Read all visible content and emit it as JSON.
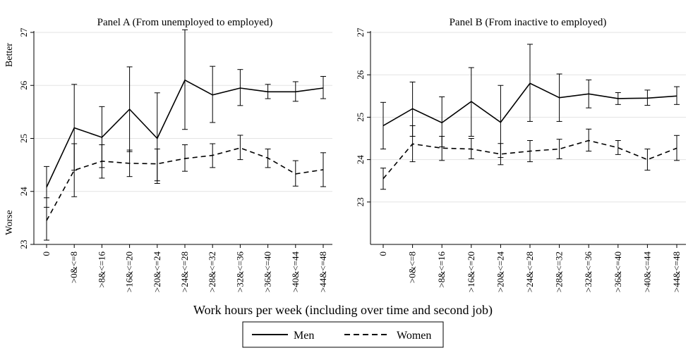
{
  "figure": {
    "x_axis_title": "Work hours per week (including over time and second job)",
    "y_side_labels": {
      "top": "Better",
      "bottom": "Worse"
    },
    "legend": {
      "items": [
        "Men",
        "Women"
      ]
    },
    "colors": {
      "lines": "#000000",
      "background": "#ffffff"
    }
  },
  "chart_data": [
    {
      "type": "line",
      "title": "Panel A (From unemployed to employed)",
      "categories": [
        "0",
        ">0&<=8",
        ">8&<=16",
        ">16&<=20",
        ">20&<=24",
        ">24&<=28",
        ">28&<=32",
        ">32&<=36",
        ">36&<=40",
        ">40&<=44",
        ">44&<=48"
      ],
      "ylim": [
        23,
        27
      ],
      "yticks": [
        23,
        24,
        25,
        26,
        27
      ],
      "grid": true,
      "series": [
        {
          "name": "Men",
          "style": "solid",
          "values": [
            24.08,
            25.2,
            25.02,
            25.55,
            25.0,
            26.1,
            25.82,
            25.95,
            25.88,
            25.88,
            25.95
          ],
          "lower": [
            23.7,
            24.4,
            24.45,
            24.75,
            24.15,
            25.17,
            25.3,
            25.62,
            25.75,
            25.7,
            25.75
          ],
          "upper": [
            24.47,
            26.02,
            25.6,
            26.35,
            25.86,
            27.05,
            26.36,
            26.3,
            26.02,
            26.07,
            26.17
          ]
        },
        {
          "name": "Women",
          "style": "dashed",
          "values": [
            23.45,
            24.4,
            24.57,
            24.53,
            24.52,
            24.62,
            24.68,
            24.82,
            24.63,
            24.33,
            24.41
          ],
          "lower": [
            23.08,
            23.9,
            24.25,
            24.28,
            24.2,
            24.38,
            24.45,
            24.6,
            24.45,
            24.1,
            24.09
          ],
          "upper": [
            23.88,
            24.9,
            24.88,
            24.78,
            24.8,
            24.88,
            24.9,
            25.06,
            24.8,
            24.58,
            24.73
          ]
        }
      ]
    },
    {
      "type": "line",
      "title": "Panel B (From inactive to employed)",
      "categories": [
        "0",
        ">0&<=8",
        ">8&<=16",
        ">16&<=20",
        ">20&<=24",
        ">24&<=28",
        ">28&<=32",
        ">32&<=36",
        ">36&<=40",
        ">40&<=44",
        ">44&<=48"
      ],
      "ylim": [
        22,
        27
      ],
      "yticks": [
        23,
        24,
        25,
        26,
        27
      ],
      "grid": true,
      "series": [
        {
          "name": "Men",
          "style": "solid",
          "values": [
            24.8,
            25.2,
            24.87,
            25.37,
            24.88,
            25.8,
            25.46,
            25.55,
            25.44,
            25.45,
            25.5
          ],
          "lower": [
            24.25,
            24.55,
            24.3,
            24.55,
            24.05,
            24.9,
            24.9,
            25.22,
            25.3,
            25.28,
            25.3
          ],
          "upper": [
            25.35,
            25.83,
            25.48,
            26.17,
            25.75,
            26.72,
            26.02,
            25.88,
            25.58,
            25.64,
            25.72
          ]
        },
        {
          "name": "Women",
          "style": "dashed",
          "values": [
            23.55,
            24.37,
            24.27,
            24.25,
            24.13,
            24.2,
            24.25,
            24.45,
            24.28,
            24.0,
            24.27
          ],
          "lower": [
            23.3,
            23.95,
            23.98,
            24.02,
            23.88,
            23.95,
            24.02,
            24.2,
            24.12,
            23.75,
            23.98
          ],
          "upper": [
            23.8,
            24.8,
            24.55,
            24.5,
            24.38,
            24.45,
            24.48,
            24.72,
            24.45,
            24.25,
            24.57
          ]
        }
      ]
    }
  ]
}
